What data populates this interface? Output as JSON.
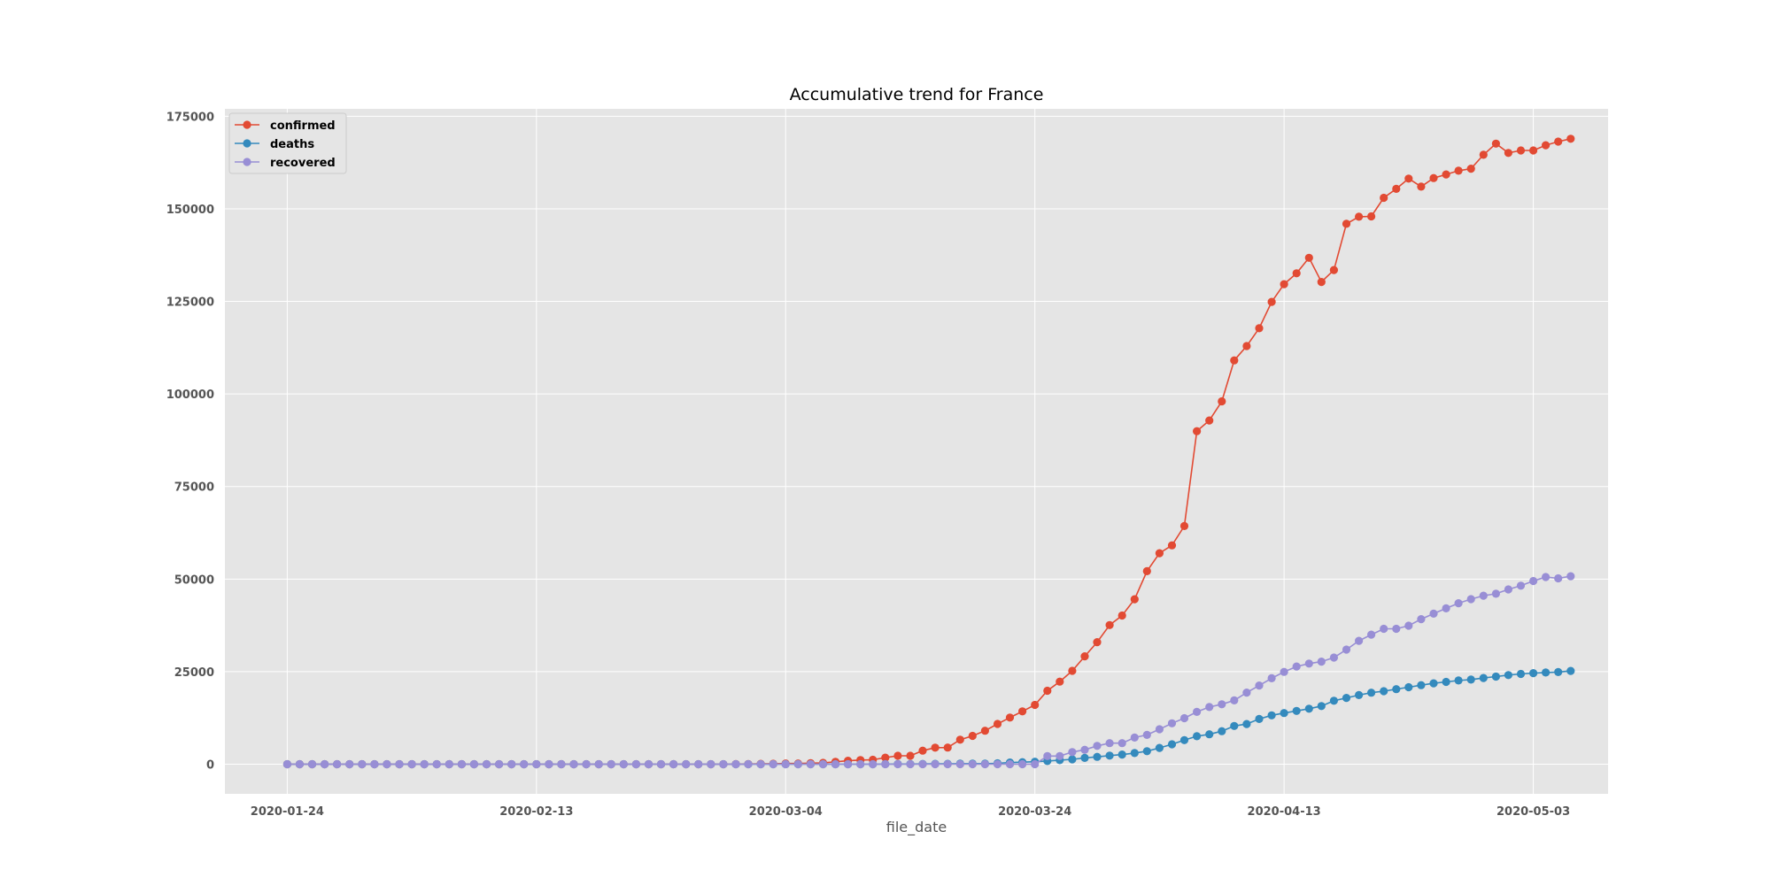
{
  "chart_data": {
    "type": "line",
    "title": "Accumulative trend for France",
    "xlabel": "file_date",
    "ylabel": "",
    "x_start": "2020-01-24",
    "x_tick_labels": [
      "2020-01-24",
      "2020-02-13",
      "2020-03-04",
      "2020-03-24",
      "2020-04-13",
      "2020-05-03"
    ],
    "y_ticks": [
      0,
      25000,
      50000,
      75000,
      100000,
      125000,
      150000,
      175000
    ],
    "ylim": [
      -8000,
      177000
    ],
    "xlim_days": [
      -5,
      106
    ],
    "grid": true,
    "legend_position": "top-left",
    "series": [
      {
        "name": "confirmed",
        "color": "#e24a33",
        "values": [
          2,
          3,
          3,
          3,
          4,
          5,
          5,
          5,
          6,
          6,
          6,
          6,
          6,
          6,
          6,
          11,
          11,
          11,
          11,
          11,
          11,
          12,
          12,
          12,
          12,
          12,
          12,
          12,
          12,
          12,
          12,
          12,
          12,
          12,
          14,
          18,
          38,
          57,
          100,
          130,
          191,
          204,
          285,
          377,
          653,
          949,
          1126,
          1209,
          1784,
          2284,
          2281,
          3661,
          4469,
          4499,
          6633,
          7652,
          9043,
          10871,
          12612,
          14282,
          16018,
          19856,
          22304,
          25233,
          29155,
          32964,
          37575,
          40174,
          44550,
          52128,
          56989,
          59105,
          64338,
          89953,
          92839,
          98010,
          109069,
          112950,
          117749,
          124869,
          129654,
          132591,
          136779,
          130253,
          133470,
          145960,
          147863,
          147969,
          152978,
          155383,
          158168,
          155980,
          158303,
          159297,
          160292,
          160847,
          164589,
          167605,
          165093,
          165764,
          165764,
          167178,
          168168,
          168925
        ]
      },
      {
        "name": "deaths",
        "color": "#348abd",
        "values": [
          0,
          0,
          0,
          0,
          0,
          0,
          0,
          0,
          0,
          0,
          0,
          0,
          0,
          0,
          0,
          0,
          0,
          0,
          0,
          0,
          0,
          0,
          1,
          1,
          1,
          1,
          1,
          1,
          1,
          1,
          1,
          1,
          1,
          1,
          1,
          2,
          2,
          2,
          2,
          2,
          3,
          4,
          4,
          6,
          9,
          11,
          19,
          19,
          33,
          48,
          48,
          79,
          91,
          91,
          149,
          149,
          149,
          244,
          450,
          562,
          674,
          860,
          1100,
          1331,
          1696,
          1995,
          2314,
          2606,
          3024,
          3523,
          4403,
          5387,
          6507,
          7560,
          8078,
          8911,
          10328,
          10869,
          12210,
          13197,
          13832,
          14393,
          14986,
          15712,
          17148,
          17901,
          18681,
          19323,
          19718,
          20265,
          20796,
          21340,
          21856,
          22245,
          22614,
          22856,
          23293,
          23660,
          24087,
          24376,
          24594,
          24760,
          24895,
          25201
        ]
      },
      {
        "name": "recovered",
        "color": "#988ed5",
        "values": [
          0,
          0,
          0,
          0,
          0,
          0,
          0,
          0,
          0,
          0,
          0,
          0,
          0,
          0,
          0,
          0,
          0,
          0,
          0,
          0,
          0,
          0,
          0,
          0,
          0,
          0,
          0,
          0,
          0,
          0,
          0,
          0,
          0,
          0,
          0,
          0,
          0,
          0,
          0,
          0,
          0,
          0,
          0,
          0,
          0,
          0,
          0,
          0,
          0,
          0,
          0,
          0,
          0,
          0,
          0,
          0,
          0,
          0,
          0,
          0,
          0,
          2200,
          2200,
          3281,
          3900,
          4948,
          5700,
          5700,
          7202,
          7927,
          9444,
          11053,
          12428,
          14135,
          15438,
          16183,
          17250,
          19337,
          21254,
          23206,
          24932,
          26391,
          27186,
          27718,
          28805,
          30955,
          33327,
          35006,
          36578,
          36578,
          37409,
          39181,
          40657,
          42088,
          43493,
          44594,
          45513,
          46038,
          47207,
          48228,
          49476,
          50562,
          50212,
          50784
        ]
      }
    ]
  }
}
